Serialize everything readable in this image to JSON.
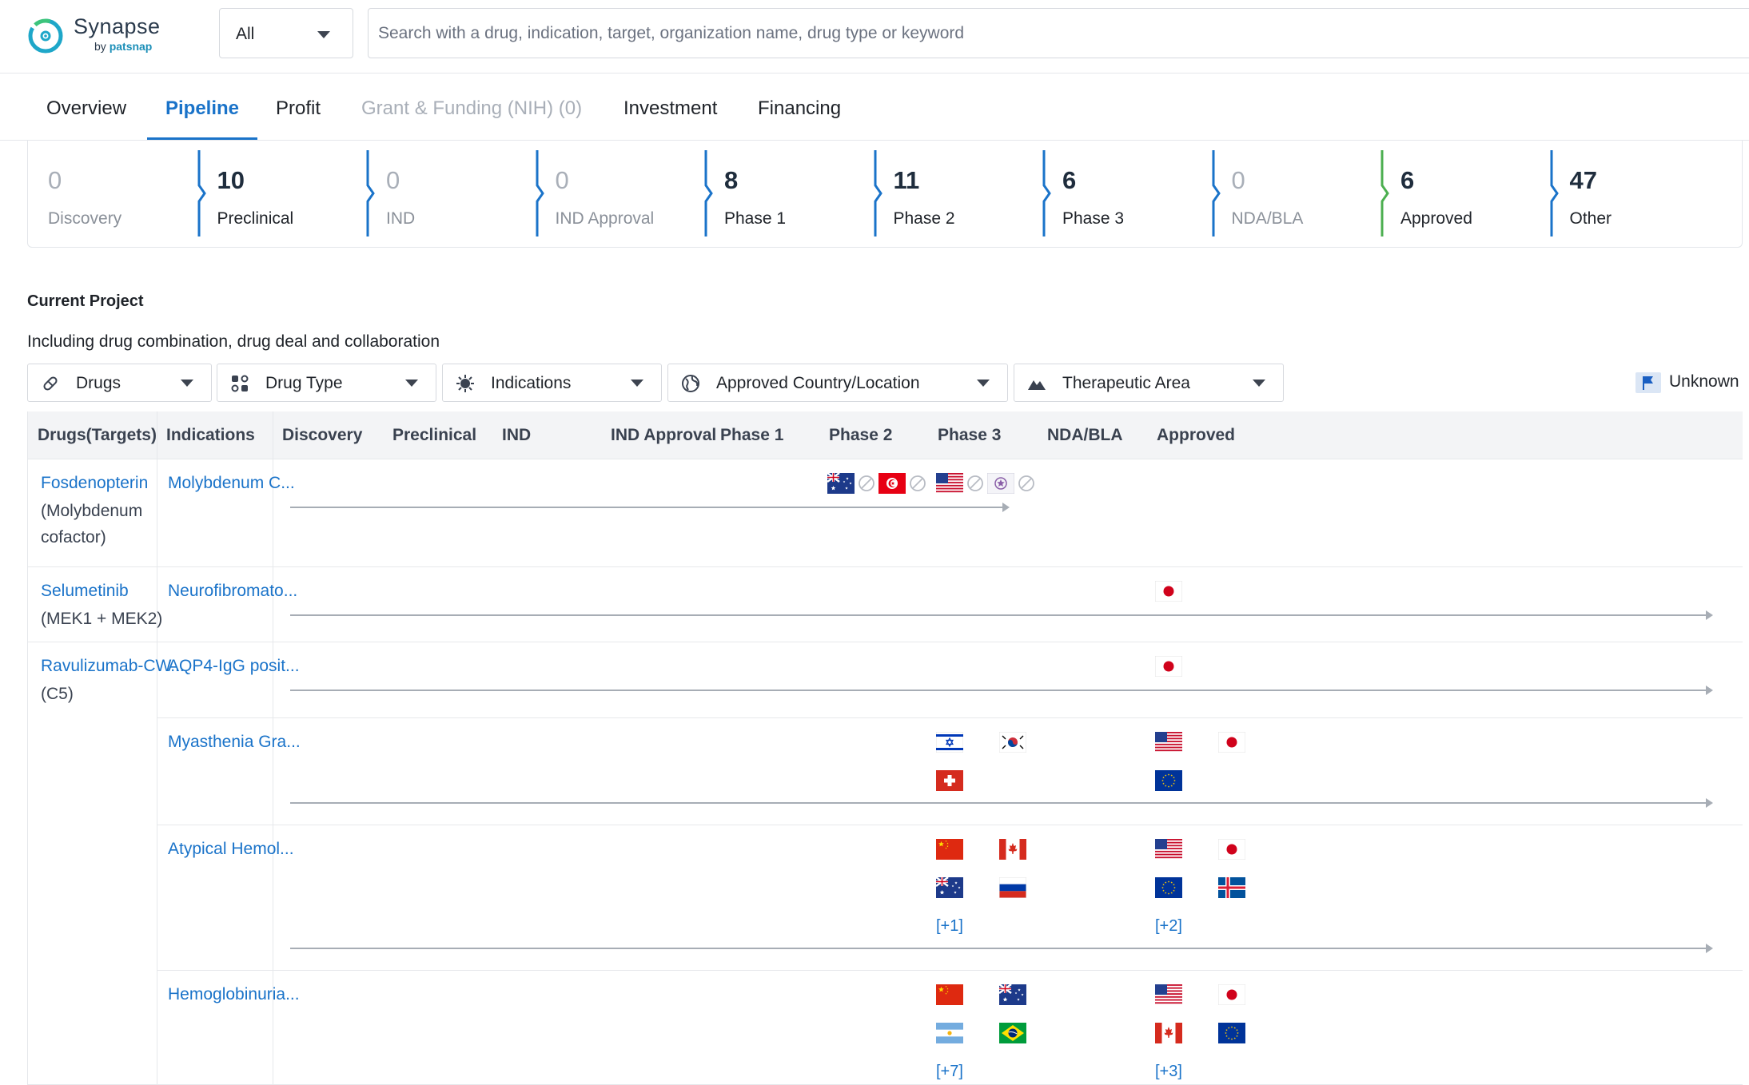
{
  "brand": {
    "name": "Synapse",
    "sub_prefix": "by",
    "sub_brand": "patsnap"
  },
  "search": {
    "scope": "All",
    "placeholder": "Search with a drug, indication, target, organization name, drug type or keyword",
    "value": ""
  },
  "tabs": [
    {
      "label": "Overview",
      "state": "normal"
    },
    {
      "label": "Pipeline",
      "state": "active"
    },
    {
      "label": "Profit",
      "state": "normal"
    },
    {
      "label": "Grant & Funding (NIH) (0)",
      "state": "disabled"
    },
    {
      "label": "Investment",
      "state": "normal"
    },
    {
      "label": "Financing",
      "state": "normal"
    }
  ],
  "phase_summary": [
    {
      "count": "0",
      "label": "Discovery"
    },
    {
      "count": "10",
      "label": "Preclinical"
    },
    {
      "count": "0",
      "label": "IND"
    },
    {
      "count": "0",
      "label": "IND Approval"
    },
    {
      "count": "8",
      "label": "Phase 1"
    },
    {
      "count": "11",
      "label": "Phase 2"
    },
    {
      "count": "6",
      "label": "Phase 3"
    },
    {
      "count": "0",
      "label": "NDA/BLA"
    },
    {
      "count": "6",
      "label": "Approved"
    },
    {
      "count": "47",
      "label": "Other"
    }
  ],
  "colors": {
    "accent": "#1a73c9",
    "approved_chevron": "#4caf50",
    "phase_chevron": "#1a73c9",
    "zero_chevron": "#9fc3ea"
  },
  "project": {
    "title": "Current Project",
    "subtitle": "Including drug combination, drug deal and collaboration"
  },
  "filters": [
    {
      "label": "Drugs",
      "icon": "pill-icon"
    },
    {
      "label": "Drug Type",
      "icon": "molecule-icon"
    },
    {
      "label": "Indications",
      "icon": "virus-icon"
    },
    {
      "label": "Approved Country/Location",
      "icon": "globe-icon"
    },
    {
      "label": "Therapeutic Area",
      "icon": "mountain-icon"
    }
  ],
  "legend": {
    "unknown": "Unknown"
  },
  "table": {
    "headers": [
      "Drugs(Targets)",
      "Indications",
      "Discovery",
      "Preclinical",
      "IND",
      "IND Approval",
      "Phase 1",
      "Phase 2",
      "Phase 3",
      "NDA/BLA",
      "Approved"
    ],
    "rows": [
      {
        "drug": "Fosdenopterin",
        "target_lines": [
          "(Molybdenum",
          "cofactor)"
        ],
        "indication": "Molybdenum C...",
        "reached_phase": "Phase 3",
        "markers": {
          "Phase 2": [
            "flag-australia",
            "no-entry",
            "flag-tunisia",
            "no-entry"
          ],
          "Phase 3": [
            "flag-usa",
            "no-entry",
            "flag-taiwan",
            "no-entry"
          ]
        }
      },
      {
        "drug": "Selumetinib",
        "target_lines": [
          "(MEK1 + MEK2)"
        ],
        "indication": "Neurofibromato...",
        "reached_phase": "Approved",
        "markers": {
          "Approved": [
            "flag-japan"
          ]
        }
      },
      {
        "drug": "Ravulizumab-CW...",
        "target_lines": [
          "(C5)"
        ],
        "indication": "AQP4-IgG posit...",
        "reached_phase": "Approved",
        "markers": {
          "Approved": [
            "flag-japan"
          ]
        }
      },
      {
        "drug": "",
        "target_lines": [],
        "indication": "Myasthenia Gra...",
        "reached_phase": "Approved",
        "markers": {
          "Phase 3": [
            "flag-israel",
            "flag-south-korea",
            "flag-switzerland"
          ],
          "Approved": [
            "flag-usa",
            "flag-japan",
            "flag-eu"
          ]
        }
      },
      {
        "drug": "",
        "target_lines": [],
        "indication": "Atypical Hemol...",
        "reached_phase": "Approved",
        "markers": {
          "Phase 3": [
            "flag-china",
            "flag-canada",
            "flag-australia",
            "flag-russia"
          ],
          "Approved": [
            "flag-usa",
            "flag-japan",
            "flag-eu",
            "flag-iceland"
          ]
        },
        "more": {
          "Phase 3": "[+1]",
          "Approved": "[+2]"
        }
      },
      {
        "drug": "",
        "target_lines": [],
        "indication": "Hemoglobinuria...",
        "reached_phase": "Approved",
        "markers": {
          "Phase 3": [
            "flag-china",
            "flag-australia",
            "flag-argentina",
            "flag-brazil"
          ],
          "Approved": [
            "flag-usa",
            "flag-japan",
            "flag-canada",
            "flag-eu"
          ]
        },
        "more": {
          "Phase 3": "[+7]",
          "Approved": "[+3]"
        }
      }
    ]
  }
}
